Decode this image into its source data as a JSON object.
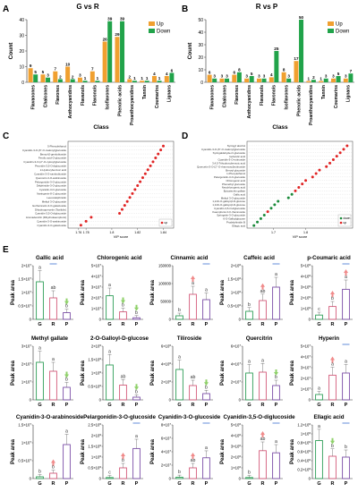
{
  "panels": {
    "A": {
      "letter": "A",
      "title": "G vs R"
    },
    "B": {
      "letter": "B",
      "title": "R vs P"
    },
    "C": {
      "letter": "C"
    },
    "D": {
      "letter": "D"
    },
    "E": {
      "letter": "E"
    }
  },
  "colors": {
    "up": "#f0a030",
    "down": "#21a34a",
    "G": "#2e9e57",
    "R": "#d45a7a",
    "P": "#7c4fa8",
    "star": "#e63d3d"
  },
  "chart_data": [
    {
      "id": "A",
      "type": "bar",
      "title": "G vs R",
      "xlabel": "Class",
      "ylabel": "Count",
      "ylim": [
        0,
        40
      ],
      "legend": [
        "Up",
        "Down"
      ],
      "legend_position": "top-right",
      "categories": [
        "Flavanones",
        "Chalcones",
        "Flavones",
        "Anthocyanidins",
        "Flavanols",
        "Flavonols",
        "Isoflavones",
        "Phenolic acids",
        "Proanthocyanidins",
        "Tannin",
        "Coumarins",
        "Lignans"
      ],
      "series": [
        {
          "name": "Up",
          "values": [
            9,
            5,
            7,
            10,
            3,
            7,
            26,
            29,
            2,
            1,
            4,
            4
          ]
        },
        {
          "name": "Down",
          "values": [
            5,
            3,
            2,
            2,
            1,
            1,
            39,
            39,
            1,
            1,
            1,
            6
          ]
        }
      ]
    },
    {
      "id": "B",
      "type": "bar",
      "title": "R vs P",
      "xlabel": "Class",
      "ylabel": "Count",
      "ylim": [
        0,
        50
      ],
      "legend": [
        "Up",
        "Down"
      ],
      "legend_position": "top-right",
      "categories": [
        "Flavanones",
        "Chalcones",
        "Flavones",
        "Anthocyanidins",
        "Flavanols",
        "Flavonols",
        "Isoflavones",
        "Phenolic acids",
        "Proanthocyanidins",
        "Tannin",
        "Coumarins",
        "Lignans"
      ],
      "series": [
        {
          "name": "Up",
          "values": [
            6,
            3,
            6,
            3,
            3,
            4,
            8,
            17,
            1,
            1,
            3,
            3
          ]
        },
        {
          "name": "Down",
          "values": [
            3,
            3,
            8,
            5,
            3,
            25,
            3,
            50,
            2,
            3,
            5,
            7
          ]
        }
      ]
    },
    {
      "id": "C",
      "type": "scatter",
      "xlabel": "VIP score",
      "xticks": [
        "1.76",
        "1.78",
        "1.8",
        "1.82",
        "1.84"
      ],
      "legend_marker": "up",
      "points": [
        {
          "label": "5-Phenylethanol",
          "x": 1.84,
          "dir": "up"
        },
        {
          "label": "Cyanidin-3-O-(6''-O-malonyl)glucoside",
          "x": 1.838,
          "dir": "up"
        },
        {
          "label": "Benzyl-β-gentiobioside",
          "x": 1.836,
          "dir": "up"
        },
        {
          "label": "Ferulic acid-O-glucoside",
          "x": 1.834,
          "dir": "up"
        },
        {
          "label": "Cyanidin-3-O-(2''-O-xylosyl)glucoside",
          "x": 1.832,
          "dir": "up"
        },
        {
          "label": "Peonidin-3,5-O-diglucoside",
          "x": 1.83,
          "dir": "up"
        },
        {
          "label": "2-Hydroxybenzoic acid",
          "x": 1.828,
          "dir": "up"
        },
        {
          "label": "Cyanidin-3-O-sambubioside",
          "x": 1.826,
          "dir": "up"
        },
        {
          "label": "Quercetin-3-O-arabinoside",
          "x": 1.824,
          "dir": "up"
        },
        {
          "label": "Pelargonidin-3-O-glucoside",
          "x": 1.822,
          "dir": "up"
        },
        {
          "label": "Delphinidin-3-O-glucoside",
          "x": 1.82,
          "dir": "up"
        },
        {
          "label": "Cyanidin-3-O-glucoside",
          "x": 1.818,
          "dir": "up"
        },
        {
          "label": "Naringenin-8-C-glucoside",
          "x": 1.816,
          "dir": "up"
        },
        {
          "label": "Leucodelphinidin",
          "x": 1.814,
          "dir": "up"
        },
        {
          "label": "Methyl 3-O-glucoside",
          "x": 1.812,
          "dir": "up"
        },
        {
          "label": "Isorhamnetin-3-O-galactoside",
          "x": 1.81,
          "dir": "up"
        },
        {
          "label": "Dihydroquercetin (Taxifolin)",
          "x": 1.808,
          "dir": "up"
        },
        {
          "label": "Cyanidin-3,5-O-diglucoside",
          "x": 1.806,
          "dir": "up"
        },
        {
          "label": "Aromadendrin (Dihydrokaempferol)",
          "x": 1.784,
          "dir": "up"
        },
        {
          "label": "Cyanidin-3-O-arabinoside",
          "x": 1.78,
          "dir": "up"
        },
        {
          "label": "Cyanidin-3-O-galactoside",
          "x": 1.776,
          "dir": "up"
        }
      ]
    },
    {
      "id": "D",
      "type": "scatter",
      "xlabel": "VIP score",
      "xticks": [
        "1.7",
        "1.8"
      ],
      "legend": [
        "down",
        "up"
      ],
      "points": [
        {
          "label": "Syringyl alcohol",
          "x": 1.86,
          "dir": "up"
        },
        {
          "label": "Cyanidin-3-O-(6''-O-malonyl)glucoside",
          "x": 1.855,
          "dir": "up"
        },
        {
          "label": "Syringaldehyde-O-glucoside",
          "x": 1.85,
          "dir": "up"
        },
        {
          "label": "Isoferulic acid",
          "x": 1.845,
          "dir": "up"
        },
        {
          "label": "Cyanidin-3-O-rutinoside",
          "x": 1.84,
          "dir": "up"
        },
        {
          "label": "3,4,5-Trihydroxybenzoic acid",
          "x": 1.835,
          "dir": "up"
        },
        {
          "label": "Quercetin-3-O-(2''-O-rhamnosyl)rutinoside",
          "x": 1.83,
          "dir": "up"
        },
        {
          "label": "Benzyl glucoside",
          "x": 1.82,
          "dir": "up"
        },
        {
          "label": "1-Phenylethanol",
          "x": 1.815,
          "dir": "up"
        },
        {
          "label": "Pelargonidin-3-O-glucoside",
          "x": 1.81,
          "dir": "up"
        },
        {
          "label": "Chlorogenic acid",
          "x": 1.8,
          "dir": "up"
        },
        {
          "label": "Phenethyl glucoside",
          "x": 1.795,
          "dir": "up"
        },
        {
          "label": "Neochlorogenic acid",
          "x": 1.79,
          "dir": "up"
        },
        {
          "label": "Epicatechin gallate",
          "x": 1.785,
          "dir": "up"
        },
        {
          "label": "Gallic acid",
          "x": 1.78,
          "dir": "down"
        },
        {
          "label": "Methyl 3-O-glucoside",
          "x": 1.775,
          "dir": "down"
        },
        {
          "label": "1,2-Di-O-galloyl-β-D-glucose",
          "x": 1.76,
          "dir": "down"
        },
        {
          "label": "1,3-Di-O-galloyl-β-D-glucose",
          "x": 1.755,
          "dir": "down"
        },
        {
          "label": "Cyanidin-3,5-O-diglucoside",
          "x": 1.75,
          "dir": "down"
        },
        {
          "label": "Kaempferol-3-O-rhamnoside",
          "x": 1.745,
          "dir": "up"
        },
        {
          "label": "Syringetin-3-O-glucoside",
          "x": 1.74,
          "dir": "down"
        },
        {
          "label": "6-O-Galloylglucose",
          "x": 1.735,
          "dir": "down"
        },
        {
          "label": "Prodelphinidin B",
          "x": 1.73,
          "dir": "down"
        },
        {
          "label": "Ellagic acid",
          "x": 1.725,
          "dir": "down"
        }
      ]
    },
    {
      "id": "E",
      "type": "bar",
      "ylabel": "Peak area",
      "categories": [
        "G",
        "R",
        "P"
      ],
      "panels": [
        {
          "title": "Gallic acid",
          "exp": "10^7",
          "ymax": 2,
          "ytick": 0.5,
          "values": [
            1.4,
            0.8,
            0.25
          ],
          "sig": [
            "a",
            "ab",
            "b"
          ],
          "arrows": [
            "",
            "",
            "down"
          ],
          "cmp": [
            "",
            "gr",
            ""
          ]
        },
        {
          "title": "Chlorogenic acid",
          "exp": "10^7",
          "ymax": 5,
          "ytick": 1,
          "values": [
            2.2,
            0.7,
            0.15
          ],
          "sig": [
            "a",
            "b",
            "b"
          ],
          "arrows": [
            "",
            "down",
            "down"
          ],
          "cmp": [
            "",
            "",
            ""
          ]
        },
        {
          "title": "Cinnamic acid",
          "exp": "",
          "ymax": 150000,
          "ytick": 50000,
          "values": [
            10000,
            70000,
            55000
          ],
          "sig": [
            "b",
            "a",
            "a"
          ],
          "arrows": [
            "",
            "up",
            ""
          ],
          "cmp": [
            "",
            "",
            "rp"
          ]
        },
        {
          "title": "Caffeic acid",
          "exp": "10^6",
          "ymax": 2,
          "ytick": 0.5,
          "values": [
            0.3,
            0.7,
            1.2
          ],
          "sig": [
            "b",
            "ab",
            "a"
          ],
          "arrows": [
            "",
            "up",
            ""
          ],
          "cmp": [
            "",
            "",
            "rp"
          ]
        },
        {
          "title": "p-Coumaric acid",
          "exp": "10^6",
          "ymax": 5,
          "ytick": 1,
          "values": [
            0.4,
            1.2,
            2.8
          ],
          "sig": [
            "c",
            "b",
            "a"
          ],
          "arrows": [
            "",
            "up",
            "up"
          ],
          "cmp": [
            "",
            "",
            "rp"
          ]
        },
        {
          "title": "Methyl gallate",
          "exp": "10^7",
          "ymax": 3,
          "ytick": 1,
          "values": [
            2.1,
            1.6,
            0.7
          ],
          "sig": [
            "a",
            "a",
            "b"
          ],
          "arrows": [
            "",
            "",
            "down"
          ],
          "cmp": [
            "",
            "",
            ""
          ]
        },
        {
          "title": "2-O-Galloyl-D-glucose",
          "exp": "10^6",
          "ymax": 2,
          "ytick": 0.5,
          "values": [
            1.3,
            0.55,
            0.1
          ],
          "sig": [
            "a",
            "ab",
            "b"
          ],
          "arrows": [
            "",
            "",
            "down"
          ],
          "cmp": [
            "",
            "",
            ""
          ]
        },
        {
          "title": "Tiliroside",
          "exp": "10^6",
          "ymax": 6,
          "ytick": 2,
          "values": [
            3.4,
            1.6,
            0.7
          ],
          "sig": [
            "a",
            "ab",
            "b"
          ],
          "arrows": [
            "",
            "",
            "down"
          ],
          "cmp": [
            "",
            "",
            ""
          ]
        },
        {
          "title": "Quercitrin",
          "exp": "10^7",
          "ymax": 6,
          "ytick": 2,
          "values": [
            3.0,
            3.1,
            1.6
          ],
          "sig": [
            "a",
            "a",
            "b"
          ],
          "arrows": [
            "",
            "",
            "down"
          ],
          "cmp": [
            "",
            "",
            ""
          ]
        },
        {
          "title": "Hyperin",
          "exp": "10^7",
          "ymax": 5,
          "ytick": 1,
          "values": [
            0.5,
            2.3,
            2.5
          ],
          "sig": [
            "a",
            "a",
            "a"
          ],
          "arrows": [
            "",
            "up",
            ""
          ],
          "cmp": [
            "",
            "",
            "rp"
          ]
        },
        {
          "title": "Cyanidin-3-O-arabinoside",
          "exp": "10^7",
          "ymax": 1.5,
          "ytick": 0.5,
          "values": [
            0.05,
            0.15,
            0.95
          ],
          "sig": [
            "b",
            "b",
            "a"
          ],
          "arrows": [
            "",
            "up",
            ""
          ],
          "cmp": [
            "",
            "",
            ""
          ]
        },
        {
          "title": "Pelargonidin-3-O-glucoside",
          "exp": "10^6",
          "ymax": 2.5,
          "ytick": 0.5,
          "values": [
            0.05,
            0.5,
            1.4
          ],
          "sig": [
            "c",
            "b",
            "a"
          ],
          "arrows": [
            "",
            "up",
            ""
          ],
          "cmp": [
            "",
            "",
            "rp"
          ]
        },
        {
          "title": "Cyanidin-3-O-glucoside",
          "exp": "10^7",
          "ymax": 8,
          "ytick": 2,
          "values": [
            0.2,
            1.6,
            3.1
          ],
          "sig": [
            "b",
            "ab",
            "a"
          ],
          "arrows": [
            "",
            "up",
            ""
          ],
          "cmp": [
            "",
            "",
            "rp"
          ]
        },
        {
          "title": "Cyanidin-3,5-O-diglucoside",
          "exp": "10^6",
          "ymax": 5,
          "ytick": 1,
          "values": [
            0.1,
            2.6,
            2.4
          ],
          "sig": [
            "b",
            "ab",
            "a"
          ],
          "arrows": [
            "",
            "up",
            ""
          ],
          "cmp": [
            "",
            "",
            "rp"
          ]
        },
        {
          "title": "Ellagic acid",
          "exp": "10^6",
          "ymax": 1.2,
          "ytick": 0.2,
          "values": [
            0.85,
            0.5,
            0.48
          ],
          "sig": [
            "a",
            "b",
            "b"
          ],
          "arrows": [
            "",
            "down",
            ""
          ],
          "cmp": [
            "",
            "",
            "rp"
          ]
        }
      ]
    }
  ]
}
